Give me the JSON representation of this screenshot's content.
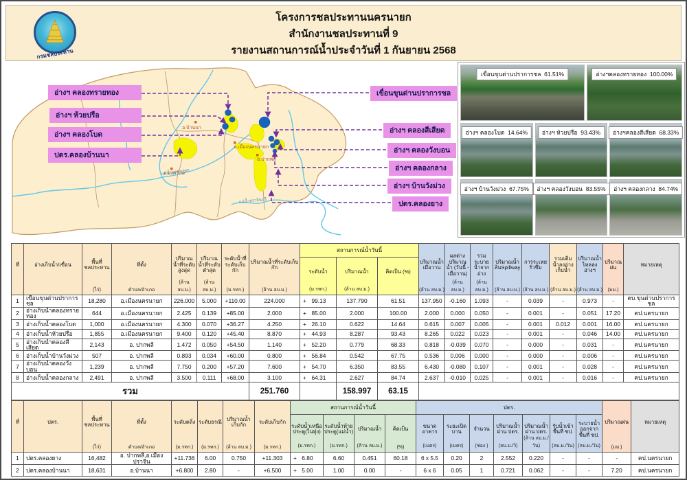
{
  "header": {
    "line1": "โครงการชลประทานนครนายก",
    "line2": "สำนักงานชลประทานที่ 9",
    "line3": "รายงานสถานการณ์น้ำประจำวันที่  1  กันยายน  2568",
    "logo_text": "กรมชลประทาน"
  },
  "map": {
    "left_labels": [
      "อ่างฯ คลองทรายทอง",
      "อ่างฯ ห้วยปรือ",
      "อ่างฯ คลองโบด",
      "ปตร.คลองบ้านนา"
    ],
    "right_labels": [
      "เขื่อนขุนด่านปราการชล",
      "อ่างฯ คลองสีเสียด",
      "อ่างฯ คลองวังบอน",
      "อ่างฯ คลองกลาง",
      "อ่างฯ บ้านวังม่วง",
      "ปตร.คลองยาง"
    ],
    "districts": [
      "อ.บ้านนา",
      "อ.เมืองนครนายก",
      "อ.ปากพลี",
      "อ.องครักษ์"
    ],
    "rivers": [
      "แม่น้ำนครนายก",
      "แม่น้ำปราจีนบุรี"
    ]
  },
  "photos": {
    "row1": [
      {
        "name": "เขื่อนขุนด่านปราการชล",
        "percent": "61.51%"
      },
      {
        "name": "อ่างฯคลองทรายทอง",
        "percent": "100.00%"
      }
    ],
    "row2": [
      {
        "name": "อ่างฯ คลองโบด",
        "percent": "14.64%"
      },
      {
        "name": "อ่างฯ ห้วยปรือ",
        "percent": "93.43%"
      },
      {
        "name": "อ่างฯคลองสีเสียด",
        "percent": "68.33%"
      }
    ],
    "row3": [
      {
        "name": "อ่างฯ บ้านวังม่วง",
        "percent": "67.75%"
      },
      {
        "name": "อ่างฯ คลองวังบอน",
        "percent": "83.55%"
      },
      {
        "name": "อ่างฯ คลองกลาง",
        "percent": "84.74%"
      }
    ]
  },
  "table1": {
    "group_header": "สถานการณ์น้ำวันนี้",
    "headers": [
      {
        "label": "ที่",
        "unit": ""
      },
      {
        "label": "อ่างเก็บน้ำ/เขื่อน",
        "unit": ""
      },
      {
        "label": "พื้นที่ชลประทาน",
        "unit": "(ไร่)"
      },
      {
        "label": "ที่ตั้ง",
        "unit": "ตำบล/อำเภอ"
      },
      {
        "label": "ปริมาณน้ำที่ระดับสูงสุด",
        "unit": "(ล้าน ลบ.ม.)"
      },
      {
        "label": "ปริมาณน้ำที่ระดับต่ำสุด",
        "unit": "(ล้าน ลบ.ม.)"
      },
      {
        "label": "ระดับน้ำที่ระดับเก็บกัก",
        "unit": "(ม.รทก.)"
      },
      {
        "label": "ปริมาณน้ำที่ระดับเก็บกัก",
        "unit": "(ล้าน ลบ.ม.)"
      },
      {
        "label": "ระดับน้ำ",
        "unit": "(ม.รทก.)"
      },
      {
        "label": "ปริมาณน้ำ",
        "unit": "(ล้าน ลบ.ม.)"
      },
      {
        "label": "คิดเป็น (%)",
        "unit": ""
      },
      {
        "label": "ปริมาณน้ำเมื่อวาน",
        "unit": "(ล้าน ลบ.ม.)"
      },
      {
        "label": "ผลต่างปริมาณน้ำ (วันนี้ - เมื่อวาน)",
        "unit": "(ล้าน ลบ.ม.)"
      },
      {
        "label": "รวมระบายน้ำจากอ่าง",
        "unit": "(ล้าน ลบ.ม.)"
      },
      {
        "label": "ปริมาณน้ำล้นSpillway",
        "unit": "(ล้าน ลบ.ม.)"
      },
      {
        "label": "การระเหยรั่วซึม",
        "unit": "(ล้าน ลบ.ม.)"
      },
      {
        "label": "รวมเติมน้ำลงอ่างเก็บน้ำ",
        "unit": "(ล้าน ลบ.ม.)"
      },
      {
        "label": "ปริมาณน้ำไหลลงอ่างฯ",
        "unit": "(ล้าน ลบ.ม.)"
      },
      {
        "label": "ปริมาณฝน",
        "unit": "(มม.)"
      },
      {
        "label": "หมายเหตุ",
        "unit": ""
      }
    ],
    "rows": [
      [
        "1",
        "เขื่อนขุนด่านปราการชล",
        "18,280",
        "อ.เมืองนครนายก",
        "226.000",
        "5.000",
        "+110.00",
        "224.000",
        "+ 99.13",
        "137.790",
        "61.51",
        "137.950",
        "-0.160",
        "1.093",
        "-",
        "0.039",
        "-",
        "0.973",
        "-",
        "คบ.ขุนด่านปราการชล"
      ],
      [
        "2",
        "อ่างเก็บน้ำคลองทรายทอง",
        "644",
        "อ.เมืองนครนายก",
        "2.425",
        "0.139",
        "+85.00",
        "2.000",
        "+ 85.00",
        "2.000",
        "100.00",
        "2.000",
        "0.000",
        "0.050",
        "-",
        "0.001",
        "-",
        "0.051",
        "17.20",
        "คป.นครนายก"
      ],
      [
        "3",
        "อ่างเก็บน้ำคลองโบด",
        "1,000",
        "อ.เมืองนครนายก",
        "4.300",
        "0.070",
        "+36.27",
        "4.250",
        "+ 26.10",
        "0.622",
        "14.64",
        "0.615",
        "0.007",
        "0.005",
        "-",
        "0.001",
        "0.012",
        "0.001",
        "16.00",
        "คป.นครนายก"
      ],
      [
        "4",
        "อ่างเก็บน้ำห้วยปรือ",
        "1,855",
        "อ.เมืองนครนายก",
        "9.400",
        "0.120",
        "+45.40",
        "8.870",
        "+ 44.93",
        "8.287",
        "93.43",
        "8.265",
        "0.022",
        "0.023",
        "-",
        "0.001",
        "-",
        "0.046",
        "14.00",
        "คป.นครนายก"
      ],
      [
        "5",
        "อ่างเก็บน้ำคลองสีเสียด",
        "2,143",
        "อ. ปากพลี",
        "1.472",
        "0.050",
        "+54.50",
        "1.140",
        "+ 52.20",
        "0.779",
        "68.33",
        "0.818",
        "-0.039",
        "0.070",
        "-",
        "0.000",
        "-",
        "0.031",
        "-",
        "คป.นครนายก"
      ],
      [
        "6",
        "อ่างเก็บน้ำบ้านวังม่วง",
        "507",
        "อ. ปากพลี",
        "0.893",
        "0.034",
        "+60.00",
        "0.800",
        "+ 56.84",
        "0.542",
        "67.75",
        "0.536",
        "0.006",
        "0.000",
        "-",
        "0.000",
        "-",
        "0.006",
        "-",
        "คป.นครนายก"
      ],
      [
        "7",
        "อ่างเก็บน้ำคลองวังบอน",
        "1,239",
        "อ. ปากพลี",
        "7.750",
        "0.200",
        "+57.20",
        "7.600",
        "+ 54.70",
        "6.350",
        "83.55",
        "6.430",
        "-0.080",
        "0.107",
        "-",
        "0.001",
        "-",
        "0.028",
        "-",
        "คป.นครนายก"
      ],
      [
        "8",
        "อ่างเก็บน้ำคลองกลาง",
        "2,491",
        "อ. ปากพลี",
        "3.500",
        "0.111",
        "+68.00",
        "3.100",
        "+ 64.31",
        "2.627",
        "84.74",
        "2.637",
        "-0.010",
        "0.025",
        "-",
        "0.001",
        "-",
        "0.016",
        "-",
        "คป.นครนายก"
      ]
    ],
    "total": {
      "label": "รวม",
      "capacity": "251.760",
      "volume": "158.997",
      "percent": "63.15"
    }
  },
  "table2": {
    "group1": "สถานการณ์น้ำวันนี้",
    "group2": "ปตร.",
    "headers": [
      {
        "label": "ที่",
        "unit": ""
      },
      {
        "label": "ปตร.",
        "unit": ""
      },
      {
        "label": "พื้นที่ชลประทาน",
        "unit": "(ไร่)"
      },
      {
        "label": "ที่ตั้ง",
        "unit": "ตำบล/อำเภอ"
      },
      {
        "label": "ระดับตลิ่ง",
        "unit": "(ม.รทก.)"
      },
      {
        "label": "ระดับธรณี",
        "unit": "(ม.รทก.)"
      },
      {
        "label": "ปริมาณน้ำเก็บกัก",
        "unit": "(ล้าน ลบ.ม.)"
      },
      {
        "label": "ระดับเก็บกัก",
        "unit": "(ม.รทก.)"
      },
      {
        "label": "ระดับน้ำเหนือประตู(ในทุ่ง)",
        "unit": "(ม.รทก.)"
      },
      {
        "label": "ระดับน้ำท้ายประตู(แม่น้ำ)",
        "unit": "(ม.รทก.)"
      },
      {
        "label": "ปริมาณน้ำ",
        "unit": "(ล้าน ลบ.ม.)"
      },
      {
        "label": "คิดเป็น",
        "unit": "(%)"
      },
      {
        "label": "ขนาดอาคาร",
        "unit": "(เมตร)"
      },
      {
        "label": "ระยะเปิดบาน",
        "unit": "(เมตร)"
      },
      {
        "label": "จำนวน",
        "unit": "(ช่อง )"
      },
      {
        "label": "ปริมาณน้ำผ่าน ปตร.",
        "unit": "(ลบ.ม./วิ)"
      },
      {
        "label": "ปริมาณน้ำผ่าน ปตร.",
        "unit": "(ล้าน ลบ.ม./วัน)"
      },
      {
        "label": "รับน้ำเข้าพื้นที่ ชป.",
        "unit": "(ลบ.ม./วัน)"
      },
      {
        "label": "ระบายน้ำออกจากพื้นที่ ชป.",
        "unit": "(ลบ.ม./วัน)"
      },
      {
        "label": "ปริมาณฝน",
        "unit": "(มม.)"
      },
      {
        "label": "หมายเหตุ",
        "unit": ""
      }
    ],
    "rows": [
      [
        "1",
        "ปตร.คลองยาง",
        "16,482",
        "อ. ปากพลี,อ.เมืองปราจีน",
        "+11.736",
        "6.00",
        "0.750",
        "+11.303",
        "+ 6.80",
        "6.60",
        "0.451",
        "60.18",
        "6 x 5.5",
        "0.20",
        "2",
        "2.552",
        "0.220",
        "-",
        "-",
        "-",
        "คป.นครนายก"
      ],
      [
        "2",
        "ปตร.คลองบ้านนา",
        "18,631",
        "อ.บ้านนา",
        "+6.800",
        "2.80",
        "-",
        "+6.500",
        "+ 5.00",
        "1.00",
        "0.00",
        "-",
        "6 x 6",
        "0.05",
        "1",
        "0.721",
        "0.062",
        "-",
        "-",
        "7.20",
        "คป.นครนายก"
      ]
    ]
  }
}
